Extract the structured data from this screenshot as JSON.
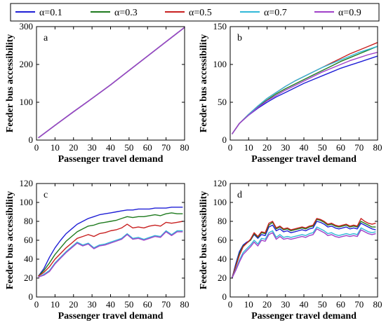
{
  "legend": {
    "entries": [
      {
        "label": "α=0.1",
        "color": "#1f1fd6"
      },
      {
        "label": "α=0.3",
        "color": "#1e7a1e"
      },
      {
        "label": "α=0.5",
        "color": "#c82020"
      },
      {
        "label": "α=0.7",
        "color": "#31b8d8"
      },
      {
        "label": "α=0.9",
        "color": "#a040c8"
      }
    ]
  },
  "chart_data": [
    {
      "type": "line",
      "panel": "a",
      "xlabel": "Passenger travel demand",
      "ylabel": "Feeder bus accessibility",
      "xlim": [
        0,
        80
      ],
      "ylim": [
        0,
        300
      ],
      "xticks": [
        0,
        10,
        20,
        30,
        40,
        50,
        60,
        70,
        80
      ],
      "yticks": [
        0,
        100,
        200,
        300
      ],
      "x": [
        1,
        10,
        20,
        30,
        40,
        50,
        60,
        70,
        80
      ],
      "series": [
        {
          "name": "α=0.1",
          "values": [
            6,
            39,
            75,
            110,
            146,
            184,
            222,
            260,
            298
          ]
        },
        {
          "name": "α=0.3",
          "values": [
            6,
            39,
            75,
            110,
            146,
            184,
            222,
            260,
            298
          ]
        },
        {
          "name": "α=0.5",
          "values": [
            6,
            39,
            75,
            110,
            146,
            184,
            222,
            260,
            298
          ]
        },
        {
          "name": "α=0.7",
          "values": [
            6,
            39,
            75,
            110,
            146,
            184,
            222,
            260,
            298
          ]
        },
        {
          "name": "α=0.9",
          "values": [
            6,
            39,
            75,
            110,
            146,
            184,
            222,
            260,
            298
          ]
        }
      ]
    },
    {
      "type": "line",
      "panel": "b",
      "xlabel": "Passenger travel demand",
      "ylabel": "Feeder bus accessibility",
      "xlim": [
        0,
        80
      ],
      "ylim": [
        0,
        150
      ],
      "xticks": [
        0,
        10,
        20,
        30,
        40,
        50,
        60,
        70,
        80
      ],
      "yticks": [
        0,
        50,
        100,
        150
      ],
      "x": [
        1,
        5,
        10,
        15,
        20,
        25,
        30,
        35,
        40,
        45,
        50,
        55,
        60,
        65,
        70,
        75,
        80
      ],
      "series": [
        {
          "name": "α=0.1",
          "values": [
            8,
            22,
            33,
            42,
            50,
            57,
            63,
            69,
            75,
            80,
            85,
            90,
            95,
            99,
            103,
            107,
            111
          ]
        },
        {
          "name": "α=0.3",
          "values": [
            8,
            22,
            34,
            44,
            53,
            61,
            68,
            74,
            80,
            86,
            92,
            98,
            104,
            109,
            114,
            119,
            124
          ]
        },
        {
          "name": "α=0.5",
          "values": [
            8,
            22,
            34,
            45,
            55,
            63,
            71,
            78,
            84,
            90,
            96,
            102,
            108,
            114,
            119,
            124,
            129
          ]
        },
        {
          "name": "α=0.7",
          "values": [
            8,
            22,
            34,
            45,
            55,
            63,
            71,
            78,
            84,
            90,
            96,
            101,
            106,
            111,
            116,
            120,
            124
          ]
        },
        {
          "name": "α=0.9",
          "values": [
            8,
            22,
            33,
            43,
            52,
            59,
            66,
            72,
            78,
            84,
            90,
            95,
            100,
            105,
            109,
            113,
            116
          ]
        }
      ]
    },
    {
      "type": "line",
      "panel": "c",
      "xlabel": "Passenger travel demand",
      "ylabel": "Feeder bus accessibility",
      "xlim": [
        0,
        80
      ],
      "ylim": [
        0,
        120
      ],
      "xticks": [
        0,
        10,
        20,
        30,
        40,
        50,
        60,
        70,
        80
      ],
      "yticks": [
        0,
        20,
        40,
        60,
        80,
        100,
        120
      ],
      "x": [
        1,
        4,
        7,
        10,
        13,
        16,
        19,
        22,
        25,
        28,
        31,
        34,
        37,
        40,
        43,
        46,
        49,
        52,
        55,
        58,
        61,
        64,
        67,
        70,
        73,
        76,
        79
      ],
      "series": [
        {
          "name": "α=0.1",
          "values": [
            22,
            30,
            42,
            52,
            60,
            67,
            72,
            77,
            80,
            83,
            85,
            87,
            88,
            89,
            90,
            91,
            92,
            92,
            93,
            93,
            93,
            94,
            94,
            94,
            95,
            95,
            95
          ]
        },
        {
          "name": "α=0.3",
          "values": [
            22,
            28,
            36,
            45,
            52,
            59,
            64,
            69,
            72,
            75,
            76,
            78,
            79,
            80,
            81,
            83,
            85,
            84,
            85,
            85,
            86,
            87,
            86,
            88,
            89,
            88,
            88
          ]
        },
        {
          "name": "α=0.5",
          "values": [
            22,
            26,
            32,
            40,
            46,
            52,
            57,
            62,
            64,
            66,
            64,
            67,
            68,
            70,
            71,
            73,
            77,
            73,
            74,
            73,
            75,
            76,
            75,
            79,
            78,
            79,
            80
          ]
        },
        {
          "name": "α=0.7",
          "values": [
            21,
            24,
            28,
            36,
            42,
            48,
            53,
            58,
            55,
            57,
            52,
            55,
            56,
            58,
            60,
            62,
            67,
            62,
            63,
            61,
            63,
            65,
            64,
            70,
            66,
            70,
            70
          ]
        },
        {
          "name": "α=0.9",
          "values": [
            21,
            23,
            27,
            35,
            41,
            47,
            52,
            57,
            54,
            56,
            51,
            54,
            55,
            57,
            59,
            61,
            66,
            61,
            62,
            60,
            62,
            64,
            63,
            69,
            65,
            69,
            69
          ]
        }
      ]
    },
    {
      "type": "line",
      "panel": "d",
      "xlabel": "Passenger travel demand",
      "ylabel": "Feeder bus accessibility",
      "xlim": [
        0,
        80
      ],
      "ylim": [
        0,
        120
      ],
      "xticks": [
        0,
        10,
        20,
        30,
        40,
        50,
        60,
        70,
        80
      ],
      "yticks": [
        0,
        20,
        40,
        60,
        80,
        100,
        120
      ],
      "x": [
        1,
        3,
        5,
        7,
        9,
        11,
        13,
        15,
        17,
        19,
        21,
        23,
        25,
        27,
        29,
        31,
        33,
        35,
        37,
        39,
        41,
        43,
        45,
        47,
        49,
        51,
        53,
        55,
        57,
        59,
        61,
        63,
        65,
        67,
        69,
        71,
        73,
        75,
        77,
        79
      ],
      "series": [
        {
          "name": "α=0.1",
          "values": [
            20,
            35,
            48,
            55,
            58,
            60,
            66,
            62,
            66,
            65,
            74,
            76,
            70,
            72,
            69,
            70,
            68,
            69,
            70,
            71,
            70,
            72,
            73,
            80,
            79,
            77,
            74,
            75,
            73,
            72,
            73,
            74,
            72,
            73,
            72,
            78,
            76,
            74,
            72,
            71
          ]
        },
        {
          "name": "α=0.3",
          "values": [
            20,
            33,
            46,
            54,
            57,
            60,
            67,
            63,
            68,
            67,
            76,
            79,
            72,
            74,
            71,
            72,
            70,
            71,
            72,
            73,
            72,
            74,
            75,
            82,
            81,
            79,
            76,
            77,
            75,
            74,
            75,
            76,
            74,
            75,
            74,
            80,
            78,
            76,
            74,
            74
          ]
        },
        {
          "name": "α=0.5",
          "values": [
            20,
            32,
            44,
            53,
            57,
            61,
            68,
            64,
            69,
            68,
            78,
            80,
            73,
            75,
            72,
            73,
            71,
            72,
            73,
            74,
            73,
            75,
            76,
            83,
            82,
            80,
            77,
            78,
            76,
            75,
            76,
            77,
            75,
            76,
            75,
            83,
            80,
            78,
            77,
            78
          ]
        },
        {
          "name": "α=0.7",
          "values": [
            20,
            29,
            39,
            47,
            51,
            55,
            60,
            56,
            62,
            61,
            68,
            70,
            63,
            66,
            63,
            64,
            63,
            64,
            65,
            66,
            65,
            67,
            68,
            74,
            72,
            70,
            67,
            68,
            66,
            65,
            66,
            67,
            66,
            67,
            66,
            73,
            71,
            69,
            68,
            69
          ]
        },
        {
          "name": "α=0.9",
          "values": [
            20,
            28,
            37,
            45,
            49,
            53,
            58,
            54,
            60,
            59,
            66,
            68,
            61,
            64,
            61,
            62,
            61,
            62,
            63,
            64,
            63,
            65,
            66,
            72,
            70,
            68,
            65,
            66,
            64,
            63,
            64,
            65,
            64,
            65,
            64,
            71,
            69,
            67,
            66,
            67
          ]
        }
      ]
    }
  ]
}
